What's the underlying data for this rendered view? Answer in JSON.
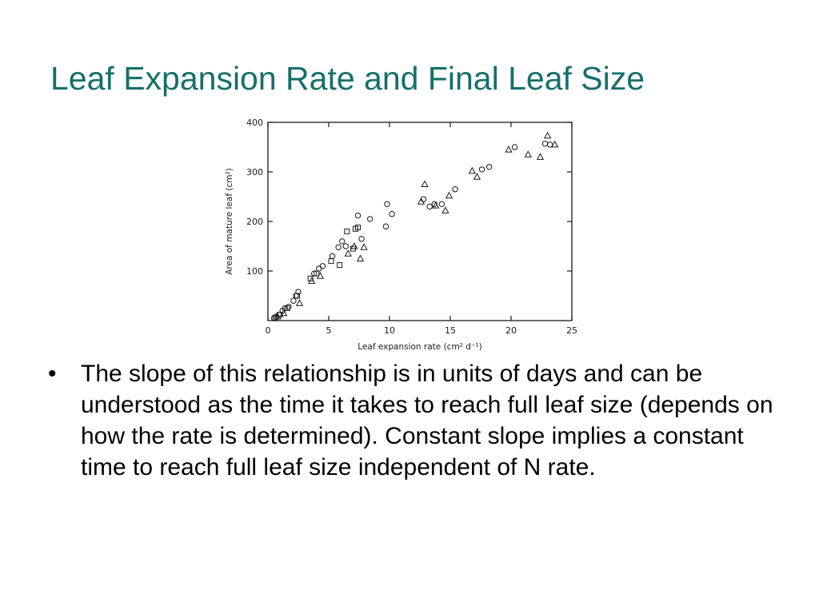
{
  "slide": {
    "title": "Leaf Expansion Rate and Final Leaf Size",
    "bullets": [
      {
        "marker": "•",
        "text": "The slope of this relationship is in units of days and can be understood as the time it takes to reach full leaf size (depends on how the rate is determined). Constant slope implies a constant time to reach full leaf size independent of N rate."
      }
    ]
  },
  "chart_data": {
    "type": "scatter",
    "title": "",
    "xlabel": "Leaf expansion rate (cm² d⁻¹)",
    "ylabel": "Area of mature leaf (cm²)",
    "xlim": [
      0,
      25
    ],
    "ylim": [
      0,
      400
    ],
    "xticks": [
      "0",
      "5",
      "10",
      "15",
      "20",
      "25"
    ],
    "yticks": [
      "100",
      "200",
      "300",
      "400"
    ],
    "grid": false,
    "legend": "none",
    "series": [
      {
        "marker": "circle",
        "points": [
          [
            0.5,
            5
          ],
          [
            0.7,
            8
          ],
          [
            0.9,
            12
          ],
          [
            1.2,
            20
          ],
          [
            1.4,
            25
          ],
          [
            1.7,
            28
          ],
          [
            2.1,
            40
          ],
          [
            2.3,
            50
          ],
          [
            2.5,
            58
          ],
          [
            3.8,
            95
          ],
          [
            4.2,
            105
          ],
          [
            4.5,
            110
          ],
          [
            5.3,
            130
          ],
          [
            5.8,
            148
          ],
          [
            6.1,
            160
          ],
          [
            6.4,
            150
          ],
          [
            7.4,
            212
          ],
          [
            7.7,
            165
          ],
          [
            8.4,
            205
          ],
          [
            9.8,
            235
          ],
          [
            9.7,
            190
          ],
          [
            10.2,
            215
          ],
          [
            12.8,
            245
          ],
          [
            13.3,
            230
          ],
          [
            13.7,
            235
          ],
          [
            14.3,
            235
          ],
          [
            15.4,
            265
          ],
          [
            17.6,
            305
          ],
          [
            18.2,
            310
          ],
          [
            20.3,
            350
          ],
          [
            22.8,
            357
          ],
          [
            23.2,
            355
          ]
        ]
      },
      {
        "marker": "square",
        "points": [
          [
            0.6,
            6
          ],
          [
            1.0,
            12
          ],
          [
            1.6,
            25
          ],
          [
            2.4,
            50
          ],
          [
            3.5,
            85
          ],
          [
            4.0,
            95
          ],
          [
            5.2,
            120
          ],
          [
            5.9,
            112
          ],
          [
            6.5,
            180
          ],
          [
            7.2,
            185
          ],
          [
            7.4,
            188
          ],
          [
            7.0,
            145
          ]
        ]
      },
      {
        "marker": "triangle",
        "points": [
          [
            0.8,
            8
          ],
          [
            1.3,
            15
          ],
          [
            2.6,
            35
          ],
          [
            3.6,
            80
          ],
          [
            4.3,
            90
          ],
          [
            6.6,
            135
          ],
          [
            7.1,
            150
          ],
          [
            7.6,
            125
          ],
          [
            7.9,
            148
          ],
          [
            12.6,
            240
          ],
          [
            12.9,
            275
          ],
          [
            13.8,
            232
          ],
          [
            14.6,
            222
          ],
          [
            14.9,
            252
          ],
          [
            16.8,
            302
          ],
          [
            17.2,
            290
          ],
          [
            19.8,
            345
          ],
          [
            21.4,
            335
          ],
          [
            22.4,
            330
          ],
          [
            23.0,
            373
          ],
          [
            23.6,
            355
          ]
        ]
      }
    ]
  }
}
